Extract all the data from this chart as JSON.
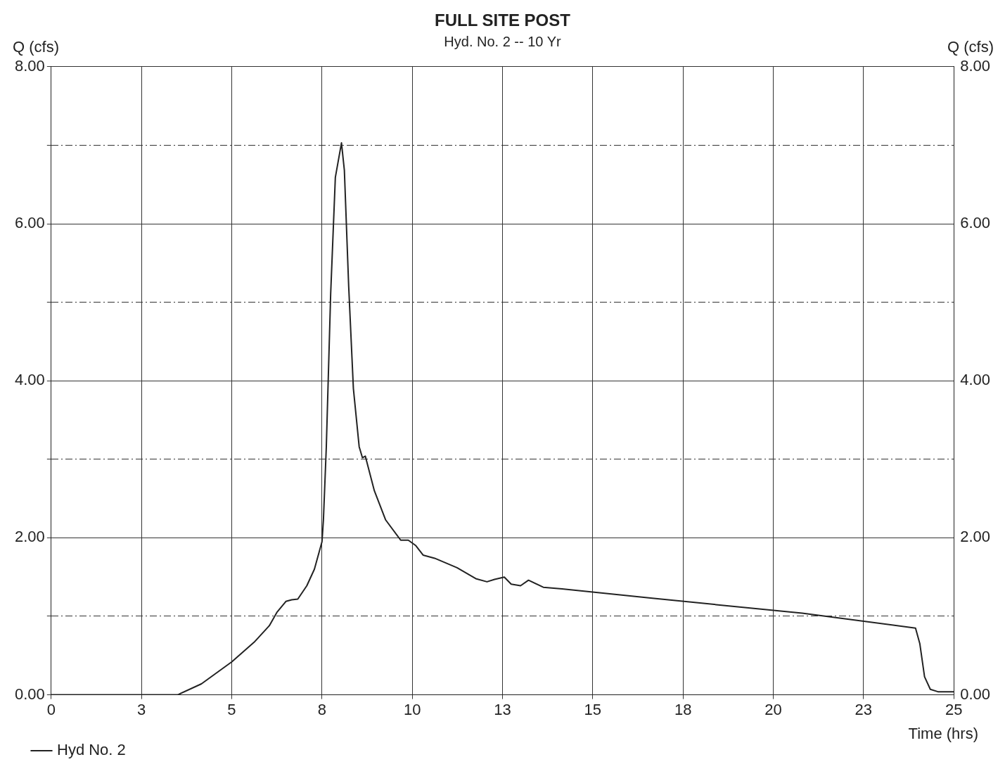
{
  "chart_data": {
    "type": "line",
    "title": "FULL SITE POST",
    "subtitle": "Hyd. No. 2 -- 10 Yr",
    "xlabel": "Time (hrs)",
    "ylabel": "Q (cfs)",
    "y2label": "Q (cfs)",
    "xlim": [
      0,
      25
    ],
    "xticks": [
      0,
      {
        "value": 2.5,
        "label": "3"
      },
      5,
      {
        "value": 7.5,
        "label": "8"
      },
      10,
      {
        "value": 12.5,
        "label": "13"
      },
      15,
      {
        "value": 17.5,
        "label": "18"
      },
      20,
      {
        "value": 22.5,
        "label": "23"
      },
      25
    ],
    "ylim": [
      0,
      8
    ],
    "yticks": [
      {
        "value": 0,
        "label": "0.00"
      },
      {
        "value": 1,
        "label": null
      },
      {
        "value": 2,
        "label": "2.00"
      },
      {
        "value": 3,
        "label": null
      },
      {
        "value": 4,
        "label": "4.00"
      },
      {
        "value": 5,
        "label": null
      },
      {
        "value": 6,
        "label": "6.00"
      },
      {
        "value": 7,
        "label": null
      },
      {
        "value": 8,
        "label": "8.00"
      }
    ],
    "y2lim": [
      0,
      8
    ],
    "y2ticks": [
      {
        "value": 0,
        "label": "0.00"
      },
      {
        "value": 2,
        "label": "2.00"
      },
      {
        "value": 4,
        "label": "4.00"
      },
      {
        "value": 6,
        "label": "6.00"
      },
      {
        "value": 8,
        "label": "8.00"
      }
    ],
    "grid": true,
    "legend": "bottom",
    "marker": "none",
    "line_style": "solid",
    "series": [
      {
        "name": "Hyd No. 2",
        "color": "#222222",
        "x": [
          0,
          3.5,
          4.16,
          5.0,
          5.62,
          6.04,
          6.25,
          6.5,
          6.66,
          6.83,
          7.08,
          7.29,
          7.5,
          7.54,
          7.62,
          7.74,
          7.87,
          8.04,
          8.12,
          8.24,
          8.37,
          8.53,
          8.62,
          8.7,
          8.95,
          9.26,
          9.68,
          9.89,
          10.1,
          10.3,
          10.62,
          11.24,
          11.76,
          12.07,
          12.28,
          12.55,
          12.74,
          13.0,
          13.22,
          13.63,
          14.15,
          16.65,
          20.8,
          23.94,
          24.06,
          24.19,
          24.35,
          24.56,
          25
        ],
        "values": [
          0,
          0,
          0.14,
          0.42,
          0.67,
          0.88,
          1.05,
          1.19,
          1.21,
          1.22,
          1.39,
          1.6,
          1.95,
          2.23,
          3.16,
          5.1,
          6.59,
          7.03,
          6.68,
          5.2,
          3.9,
          3.16,
          3.02,
          3.04,
          2.6,
          2.23,
          1.97,
          1.97,
          1.9,
          1.78,
          1.74,
          1.62,
          1.48,
          1.44,
          1.47,
          1.5,
          1.41,
          1.39,
          1.46,
          1.37,
          1.35,
          1.23,
          1.04,
          0.85,
          0.65,
          0.23,
          0.07,
          0.04,
          0.04
        ]
      }
    ]
  }
}
